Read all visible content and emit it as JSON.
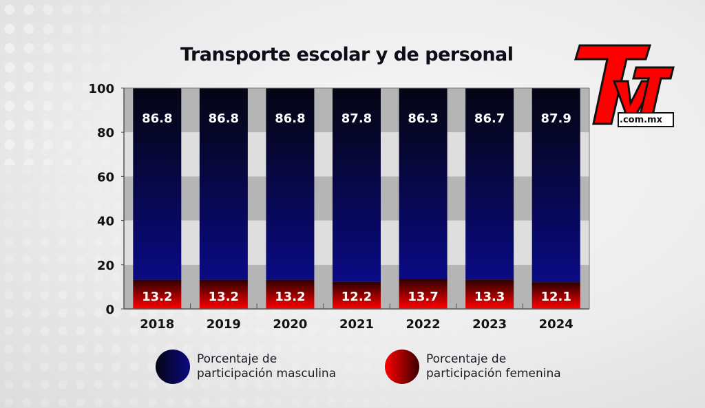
{
  "header": {
    "title": "Transporte escolar y de personal"
  },
  "logo": {
    "name": "TyT",
    "domain": ".com.mx",
    "colors": {
      "red": "#ff0000",
      "outline": "#111111"
    }
  },
  "colors": {
    "male_top": "#050515",
    "male_bottom": "#0a0a80",
    "female_top": "#3a0000",
    "female_bottom": "#ff0000",
    "band_dark": "#b5b5b5",
    "band_light": "#dedede"
  },
  "chart_data": {
    "type": "bar",
    "stacked": true,
    "title": "Transporte escolar y de personal",
    "xlabel": "",
    "ylabel": "",
    "ylim": [
      0,
      100
    ],
    "yticks": [
      0,
      20,
      40,
      60,
      80,
      100
    ],
    "categories": [
      "2018",
      "2019",
      "2020",
      "2021",
      "2022",
      "2023",
      "2024"
    ],
    "series": [
      {
        "name": "Porcentaje de participación femenina",
        "values": [
          13.2,
          13.2,
          13.2,
          12.2,
          13.7,
          13.3,
          12.1
        ]
      },
      {
        "name": "Porcentaje de participación masculina",
        "values": [
          86.8,
          86.8,
          86.8,
          87.8,
          86.3,
          86.7,
          87.9
        ]
      }
    ],
    "legend_position": "bottom",
    "grid": "alternating horizontal bands"
  },
  "legend": [
    {
      "line1": "Porcentaje de",
      "line2": "participación masculina"
    },
    {
      "line1": "Porcentaje de",
      "line2": "participación femenina"
    }
  ]
}
